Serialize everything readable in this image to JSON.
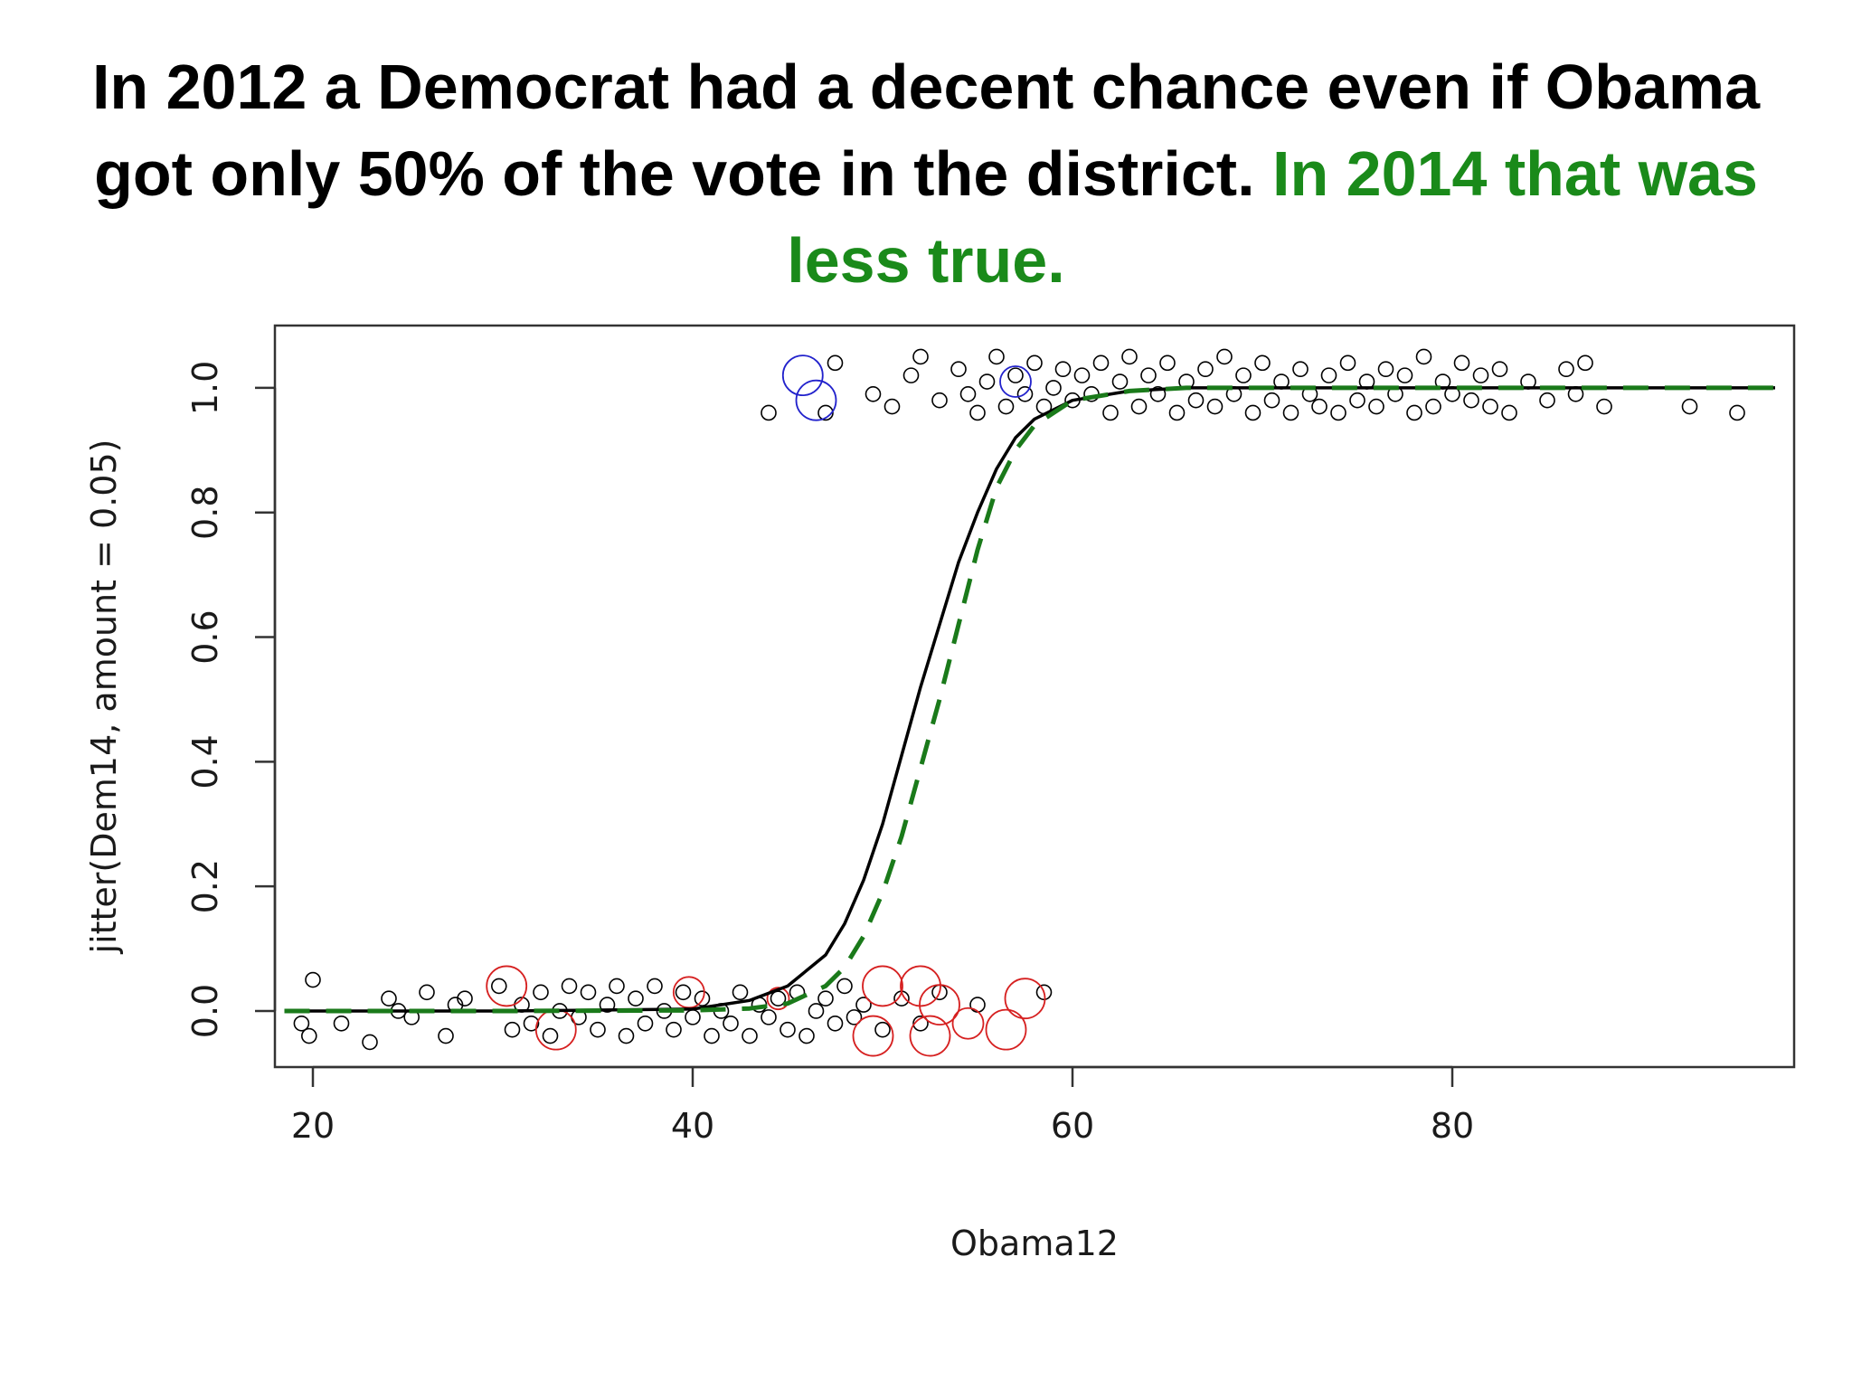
{
  "slide": {
    "title_part1": "In 2012 a Democrat had a decent chance even if Obama got only 50% of the vote in the district.",
    "title_part2": "In 2014 that was less true.",
    "highlight_color": "#1a8a1a"
  },
  "chart_data": {
    "type": "scatter",
    "xlabel": "Obama12",
    "ylabel": "jitter(Dem14, amount = 0.05)",
    "xlim": [
      18,
      98
    ],
    "ylim": [
      -0.09,
      1.1
    ],
    "x_ticks": [
      20,
      40,
      60,
      80
    ],
    "y_ticks": [
      0.0,
      0.2,
      0.4,
      0.6,
      0.8,
      1.0
    ],
    "x_tick_labels": [
      "20",
      "40",
      "60",
      "80"
    ],
    "y_tick_labels": [
      "0.0",
      "0.2",
      "0.4",
      "0.6",
      "0.8",
      "1.0"
    ],
    "grid": false,
    "legend": "none",
    "colors": {
      "points": "#000000",
      "highlight_loss": "#d62020",
      "highlight_win": "#2222cc",
      "fit_2012": "#000000",
      "fit_2014": "#1a7a1a"
    },
    "series": [
      {
        "style": "solid",
        "color": "#000000",
        "curve": "logistic",
        "x": [
          18.5,
          30,
          40,
          43,
          45,
          47,
          48,
          49,
          50,
          51,
          52,
          53,
          54,
          55,
          56,
          57,
          58,
          60,
          63,
          66,
          70,
          80,
          97
        ],
        "y": [
          0.0,
          0.0,
          0.003,
          0.017,
          0.04,
          0.09,
          0.14,
          0.21,
          0.3,
          0.41,
          0.52,
          0.62,
          0.72,
          0.8,
          0.87,
          0.92,
          0.95,
          0.98,
          0.995,
          1.0,
          1.0,
          1.0,
          1.0
        ]
      },
      {
        "style": "dashed",
        "color": "#1a7a1a",
        "curve": "logistic",
        "x": [
          18.5,
          30,
          40,
          43,
          45,
          47,
          48,
          49,
          50,
          51,
          52,
          53,
          54,
          55,
          56,
          57,
          58,
          60,
          63,
          66,
          70,
          80,
          97
        ],
        "y": [
          0.0,
          0.0,
          0.001,
          0.004,
          0.012,
          0.04,
          0.07,
          0.12,
          0.19,
          0.28,
          0.39,
          0.5,
          0.62,
          0.74,
          0.84,
          0.9,
          0.94,
          0.98,
          0.995,
          1.0,
          1.0,
          1.0,
          1.0
        ]
      }
    ],
    "points": [
      {
        "x": 19.8,
        "y": -0.04
      },
      {
        "x": 20.0,
        "y": 0.05
      },
      {
        "x": 19.4,
        "y": -0.02
      },
      {
        "x": 21.5,
        "y": -0.02
      },
      {
        "x": 23.0,
        "y": -0.05
      },
      {
        "x": 24.0,
        "y": 0.02
      },
      {
        "x": 24.5,
        "y": 0.0
      },
      {
        "x": 25.2,
        "y": -0.01
      },
      {
        "x": 26.0,
        "y": 0.03
      },
      {
        "x": 27.0,
        "y": -0.04
      },
      {
        "x": 27.5,
        "y": 0.01
      },
      {
        "x": 28.0,
        "y": 0.02
      },
      {
        "x": 29.8,
        "y": 0.04
      },
      {
        "x": 30.5,
        "y": -0.03
      },
      {
        "x": 31.0,
        "y": 0.01
      },
      {
        "x": 31.5,
        "y": -0.02
      },
      {
        "x": 32.0,
        "y": 0.03
      },
      {
        "x": 32.5,
        "y": -0.04
      },
      {
        "x": 33.0,
        "y": 0.0
      },
      {
        "x": 33.5,
        "y": 0.04
      },
      {
        "x": 34.0,
        "y": -0.01
      },
      {
        "x": 34.5,
        "y": 0.03
      },
      {
        "x": 35.0,
        "y": -0.03
      },
      {
        "x": 35.5,
        "y": 0.01
      },
      {
        "x": 36.0,
        "y": 0.04
      },
      {
        "x": 36.5,
        "y": -0.04
      },
      {
        "x": 37.0,
        "y": 0.02
      },
      {
        "x": 37.5,
        "y": -0.02
      },
      {
        "x": 38.0,
        "y": 0.04
      },
      {
        "x": 38.5,
        "y": 0.0
      },
      {
        "x": 39.0,
        "y": -0.03
      },
      {
        "x": 39.5,
        "y": 0.03
      },
      {
        "x": 40.0,
        "y": -0.01
      },
      {
        "x": 40.5,
        "y": 0.02
      },
      {
        "x": 41.0,
        "y": -0.04
      },
      {
        "x": 41.5,
        "y": 0.0
      },
      {
        "x": 42.0,
        "y": -0.02
      },
      {
        "x": 42.5,
        "y": 0.03
      },
      {
        "x": 43.0,
        "y": -0.04
      },
      {
        "x": 43.5,
        "y": 0.01
      },
      {
        "x": 44.0,
        "y": -0.01
      },
      {
        "x": 44.5,
        "y": 0.02
      },
      {
        "x": 45.0,
        "y": -0.03
      },
      {
        "x": 45.5,
        "y": 0.03
      },
      {
        "x": 46.0,
        "y": -0.04
      },
      {
        "x": 46.5,
        "y": 0.0
      },
      {
        "x": 47.0,
        "y": 0.02
      },
      {
        "x": 47.5,
        "y": -0.02
      },
      {
        "x": 48.0,
        "y": 0.04
      },
      {
        "x": 48.5,
        "y": -0.01
      },
      {
        "x": 49.0,
        "y": 0.01
      },
      {
        "x": 50.0,
        "y": -0.03
      },
      {
        "x": 51.0,
        "y": 0.02
      },
      {
        "x": 52.0,
        "y": -0.02
      },
      {
        "x": 53.0,
        "y": 0.03
      },
      {
        "x": 55.0,
        "y": 0.01
      },
      {
        "x": 58.5,
        "y": 0.03
      },
      {
        "x": 44.0,
        "y": 0.96
      },
      {
        "x": 47.0,
        "y": 0.96
      },
      {
        "x": 47.5,
        "y": 1.04
      },
      {
        "x": 49.5,
        "y": 0.99
      },
      {
        "x": 50.5,
        "y": 0.97
      },
      {
        "x": 51.5,
        "y": 1.02
      },
      {
        "x": 52.0,
        "y": 1.05
      },
      {
        "x": 53.0,
        "y": 0.98
      },
      {
        "x": 54.0,
        "y": 1.03
      },
      {
        "x": 54.5,
        "y": 0.99
      },
      {
        "x": 55.0,
        "y": 0.96
      },
      {
        "x": 55.5,
        "y": 1.01
      },
      {
        "x": 56.0,
        "y": 1.05
      },
      {
        "x": 56.5,
        "y": 0.97
      },
      {
        "x": 57.0,
        "y": 1.02
      },
      {
        "x": 57.5,
        "y": 0.99
      },
      {
        "x": 58.0,
        "y": 1.04
      },
      {
        "x": 58.5,
        "y": 0.97
      },
      {
        "x": 59.0,
        "y": 1.0
      },
      {
        "x": 59.5,
        "y": 1.03
      },
      {
        "x": 60.0,
        "y": 0.98
      },
      {
        "x": 60.5,
        "y": 1.02
      },
      {
        "x": 61.0,
        "y": 0.99
      },
      {
        "x": 61.5,
        "y": 1.04
      },
      {
        "x": 62.0,
        "y": 0.96
      },
      {
        "x": 62.5,
        "y": 1.01
      },
      {
        "x": 63.0,
        "y": 1.05
      },
      {
        "x": 63.5,
        "y": 0.97
      },
      {
        "x": 64.0,
        "y": 1.02
      },
      {
        "x": 64.5,
        "y": 0.99
      },
      {
        "x": 65.0,
        "y": 1.04
      },
      {
        "x": 65.5,
        "y": 0.96
      },
      {
        "x": 66.0,
        "y": 1.01
      },
      {
        "x": 66.5,
        "y": 0.98
      },
      {
        "x": 67.0,
        "y": 1.03
      },
      {
        "x": 67.5,
        "y": 0.97
      },
      {
        "x": 68.0,
        "y": 1.05
      },
      {
        "x": 68.5,
        "y": 0.99
      },
      {
        "x": 69.0,
        "y": 1.02
      },
      {
        "x": 69.5,
        "y": 0.96
      },
      {
        "x": 70.0,
        "y": 1.04
      },
      {
        "x": 70.5,
        "y": 0.98
      },
      {
        "x": 71.0,
        "y": 1.01
      },
      {
        "x": 71.5,
        "y": 0.96
      },
      {
        "x": 72.0,
        "y": 1.03
      },
      {
        "x": 72.5,
        "y": 0.99
      },
      {
        "x": 73.0,
        "y": 0.97
      },
      {
        "x": 73.5,
        "y": 1.02
      },
      {
        "x": 74.0,
        "y": 0.96
      },
      {
        "x": 74.5,
        "y": 1.04
      },
      {
        "x": 75.0,
        "y": 0.98
      },
      {
        "x": 75.5,
        "y": 1.01
      },
      {
        "x": 76.0,
        "y": 0.97
      },
      {
        "x": 76.5,
        "y": 1.03
      },
      {
        "x": 77.0,
        "y": 0.99
      },
      {
        "x": 77.5,
        "y": 1.02
      },
      {
        "x": 78.0,
        "y": 0.96
      },
      {
        "x": 78.5,
        "y": 1.05
      },
      {
        "x": 79.0,
        "y": 0.97
      },
      {
        "x": 79.5,
        "y": 1.01
      },
      {
        "x": 80.0,
        "y": 0.99
      },
      {
        "x": 80.5,
        "y": 1.04
      },
      {
        "x": 81.0,
        "y": 0.98
      },
      {
        "x": 81.5,
        "y": 1.02
      },
      {
        "x": 82.0,
        "y": 0.97
      },
      {
        "x": 82.5,
        "y": 1.03
      },
      {
        "x": 83.0,
        "y": 0.96
      },
      {
        "x": 84.0,
        "y": 1.01
      },
      {
        "x": 85.0,
        "y": 0.98
      },
      {
        "x": 86.0,
        "y": 1.03
      },
      {
        "x": 86.5,
        "y": 0.99
      },
      {
        "x": 87.0,
        "y": 1.04
      },
      {
        "x": 88.0,
        "y": 0.97
      },
      {
        "x": 92.5,
        "y": 0.97
      },
      {
        "x": 95.0,
        "y": 0.96
      }
    ],
    "highlighted_points": [
      {
        "x": 30.2,
        "y": 0.04,
        "color": "#d62020",
        "size": "large"
      },
      {
        "x": 32.8,
        "y": -0.03,
        "color": "#d62020",
        "size": "large"
      },
      {
        "x": 39.8,
        "y": 0.03,
        "color": "#d62020",
        "size": "medium"
      },
      {
        "x": 44.5,
        "y": 0.02,
        "color": "#d62020",
        "size": "small"
      },
      {
        "x": 50.0,
        "y": 0.04,
        "color": "#d62020",
        "size": "large"
      },
      {
        "x": 49.5,
        "y": -0.04,
        "color": "#d62020",
        "size": "large"
      },
      {
        "x": 52.0,
        "y": 0.04,
        "color": "#d62020",
        "size": "large"
      },
      {
        "x": 53.0,
        "y": 0.01,
        "color": "#d62020",
        "size": "large"
      },
      {
        "x": 52.5,
        "y": -0.04,
        "color": "#d62020",
        "size": "large"
      },
      {
        "x": 54.5,
        "y": -0.02,
        "color": "#d62020",
        "size": "medium"
      },
      {
        "x": 56.5,
        "y": -0.03,
        "color": "#d62020",
        "size": "large"
      },
      {
        "x": 57.5,
        "y": 0.02,
        "color": "#d62020",
        "size": "large"
      },
      {
        "x": 45.8,
        "y": 1.02,
        "color": "#2222cc",
        "size": "large"
      },
      {
        "x": 46.5,
        "y": 0.98,
        "color": "#2222cc",
        "size": "large"
      },
      {
        "x": 57.0,
        "y": 1.01,
        "color": "#2222cc",
        "size": "medium"
      }
    ]
  }
}
